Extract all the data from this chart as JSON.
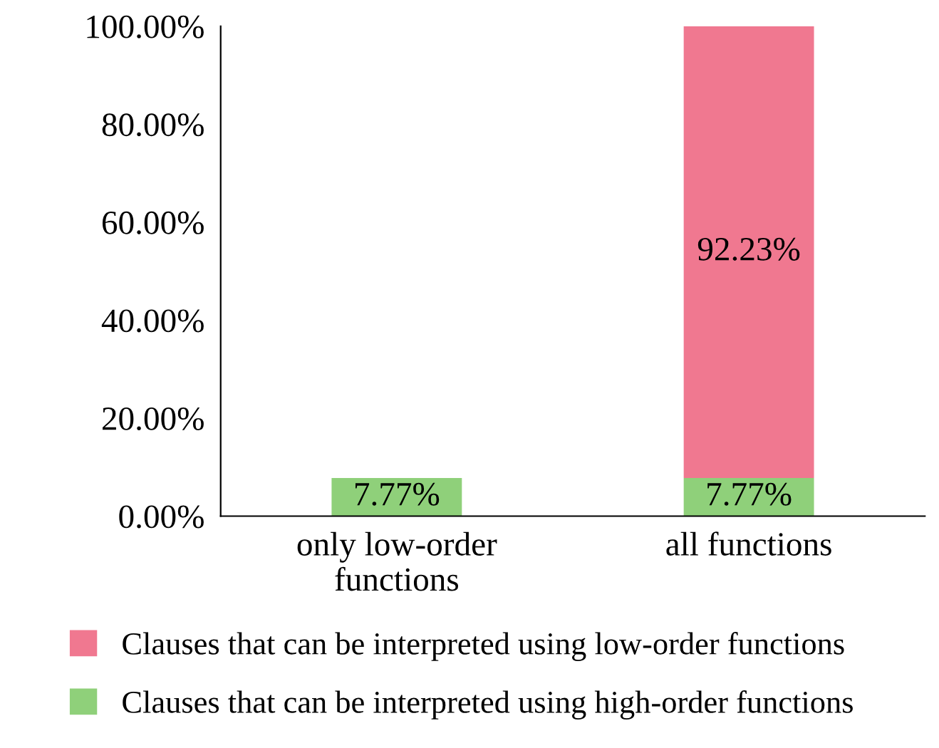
{
  "chart_data": {
    "type": "bar",
    "stacked": true,
    "categories": [
      "only low-order functions",
      "all functions"
    ],
    "series": [
      {
        "name": "Clauses that can be interpreted using high-order functions",
        "color": "#8fd07a",
        "values": [
          7.77,
          7.77
        ],
        "value_labels": [
          "7.77%",
          "7.77%"
        ]
      },
      {
        "name": "Clauses that can be interpreted using low-order functions",
        "color": "#f07890",
        "values": [
          null,
          92.23
        ],
        "value_labels": [
          null,
          "92.23%"
        ]
      }
    ],
    "ylim": [
      0,
      100
    ],
    "yticks": [
      {
        "value": 0,
        "label": "0.00%"
      },
      {
        "value": 20,
        "label": "20.00%"
      },
      {
        "value": 40,
        "label": "40.00%"
      },
      {
        "value": 60,
        "label": "60.00%"
      },
      {
        "value": 80,
        "label": "80.00%"
      },
      {
        "value": 100,
        "label": "100.00%"
      }
    ],
    "grid": false,
    "legend": "bottom"
  }
}
